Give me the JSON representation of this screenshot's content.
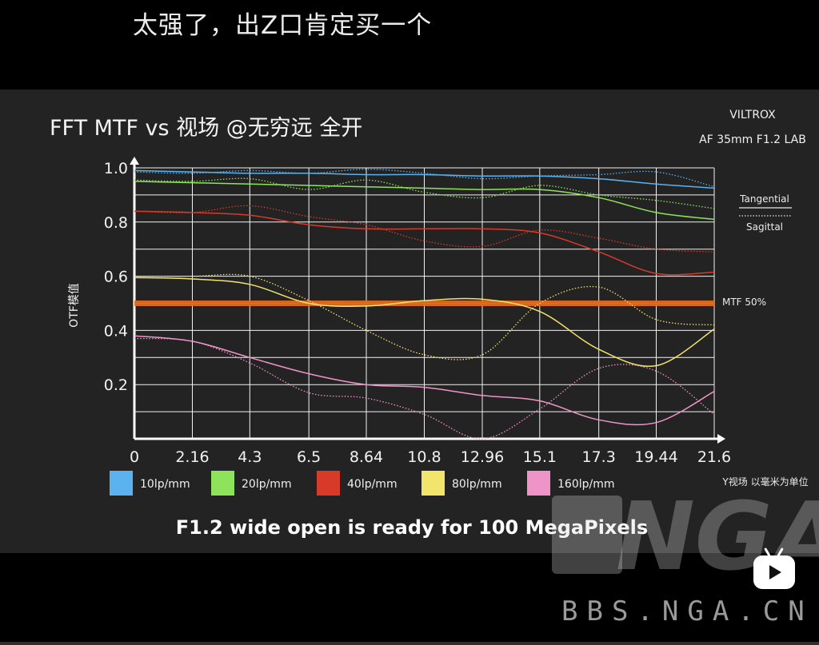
{
  "video": {
    "caption": "太强了，出Z口肯定买一个",
    "watermark_logo": "NGA",
    "watermark_url": "BBS.NGA.CN"
  },
  "slide": {
    "brand_line1": "VILTROX",
    "brand_line2": "AF 35mm F1.2 LAB",
    "tagline": "F1.2 wide open is ready for 100 MegaPixels",
    "line_style_legend": {
      "solid": "Tangential",
      "dotted": "Sagittal"
    },
    "mtf50_label": "MTF 50%",
    "x_unit_note": "Y视场 以毫米为单位"
  },
  "colors": {
    "background": "#232323",
    "mtf50_line": "#e06a1c",
    "10lp": "#5ab2ee",
    "20lp": "#8fe35a",
    "40lp": "#d83a2a",
    "80lp": "#f3e46c",
    "160lp": "#ef94c8"
  },
  "chart_data": {
    "type": "line",
    "title": "FFT MTF vs 视场 @无穷远 全开",
    "ylabel": "OTF模值",
    "xlabel": "",
    "x_ticks": [
      "0",
      "2.16",
      "4.3",
      "6.5",
      "8.64",
      "10.8",
      "12.96",
      "15.1",
      "17.3",
      "19.44",
      "21.6"
    ],
    "y_ticks": [
      "0.2",
      "0.4",
      "0.6",
      "0.8",
      "1.0"
    ],
    "xlim": [
      0,
      21.6
    ],
    "ylim": [
      0,
      1.0
    ],
    "grid": true,
    "reference_line": {
      "label": "MTF 50%",
      "y": 0.5
    },
    "legend": [
      "10lp/mm",
      "20lp/mm",
      "40lp/mm",
      "80lp/mm",
      "160lp/mm"
    ],
    "series": [
      {
        "name": "10lp/mm",
        "color": "#5ab2ee",
        "style": "solid",
        "x": [
          0,
          2.16,
          4.3,
          6.5,
          8.64,
          10.8,
          12.96,
          15.1,
          17.3,
          19.44,
          21.6
        ],
        "y": [
          0.99,
          0.985,
          0.98,
          0.98,
          0.975,
          0.975,
          0.97,
          0.97,
          0.96,
          0.94,
          0.925
        ]
      },
      {
        "name": "10lp/mm",
        "color": "#5ab2ee",
        "style": "dotted",
        "x": [
          0,
          2.16,
          4.3,
          6.5,
          8.64,
          10.8,
          12.96,
          15.1,
          17.3,
          19.44,
          21.6
        ],
        "y": [
          0.985,
          0.98,
          0.99,
          0.98,
          0.995,
          0.98,
          0.96,
          0.97,
          0.975,
          0.985,
          0.93
        ]
      },
      {
        "name": "20lp/mm",
        "color": "#8fe35a",
        "style": "solid",
        "x": [
          0,
          2.16,
          4.3,
          6.5,
          8.64,
          10.8,
          12.96,
          15.1,
          17.3,
          19.44,
          21.6
        ],
        "y": [
          0.95,
          0.945,
          0.94,
          0.935,
          0.93,
          0.925,
          0.92,
          0.92,
          0.89,
          0.835,
          0.81
        ]
      },
      {
        "name": "20lp/mm",
        "color": "#8fe35a",
        "style": "dotted",
        "x": [
          0,
          2.16,
          4.3,
          6.5,
          8.64,
          10.8,
          12.96,
          15.1,
          17.3,
          19.44,
          21.6
        ],
        "y": [
          0.955,
          0.95,
          0.96,
          0.92,
          0.955,
          0.91,
          0.89,
          0.935,
          0.9,
          0.88,
          0.85
        ]
      },
      {
        "name": "40lp/mm",
        "color": "#d83a2a",
        "style": "solid",
        "x": [
          0,
          2.16,
          4.3,
          6.5,
          8.64,
          10.8,
          12.96,
          15.1,
          17.3,
          19.44,
          21.6
        ],
        "y": [
          0.84,
          0.835,
          0.825,
          0.79,
          0.775,
          0.775,
          0.775,
          0.76,
          0.69,
          0.61,
          0.615
        ]
      },
      {
        "name": "40lp/mm",
        "color": "#d83a2a",
        "style": "dotted",
        "x": [
          0,
          2.16,
          4.3,
          6.5,
          8.64,
          10.8,
          12.96,
          15.1,
          17.3,
          19.44,
          21.6
        ],
        "y": [
          0.84,
          0.835,
          0.86,
          0.82,
          0.79,
          0.73,
          0.71,
          0.77,
          0.74,
          0.7,
          0.69
        ]
      },
      {
        "name": "80lp/mm",
        "color": "#f3e46c",
        "style": "solid",
        "x": [
          0,
          2.16,
          4.3,
          6.5,
          8.64,
          10.8,
          12.96,
          15.1,
          17.3,
          19.44,
          21.6
        ],
        "y": [
          0.595,
          0.59,
          0.57,
          0.5,
          0.49,
          0.51,
          0.515,
          0.47,
          0.33,
          0.27,
          0.405
        ]
      },
      {
        "name": "80lp/mm",
        "color": "#f3e46c",
        "style": "dotted",
        "x": [
          0,
          2.16,
          4.3,
          6.5,
          8.64,
          10.8,
          12.96,
          15.1,
          17.3,
          19.44,
          21.6
        ],
        "y": [
          0.6,
          0.6,
          0.6,
          0.51,
          0.4,
          0.31,
          0.31,
          0.5,
          0.56,
          0.44,
          0.42
        ]
      },
      {
        "name": "160lp/mm",
        "color": "#ef94c8",
        "style": "solid",
        "x": [
          0,
          2.16,
          4.3,
          6.5,
          8.64,
          10.8,
          12.96,
          15.1,
          17.3,
          19.44,
          21.6
        ],
        "y": [
          0.38,
          0.36,
          0.3,
          0.24,
          0.2,
          0.19,
          0.16,
          0.14,
          0.07,
          0.06,
          0.175
        ]
      },
      {
        "name": "160lp/mm",
        "color": "#ef94c8",
        "style": "dotted",
        "x": [
          0,
          2.16,
          4.3,
          6.5,
          8.64,
          10.8,
          12.96,
          15.1,
          17.3,
          19.44,
          21.6
        ],
        "y": [
          0.37,
          0.36,
          0.28,
          0.17,
          0.15,
          0.09,
          0.0,
          0.11,
          0.26,
          0.25,
          0.09
        ]
      }
    ]
  }
}
